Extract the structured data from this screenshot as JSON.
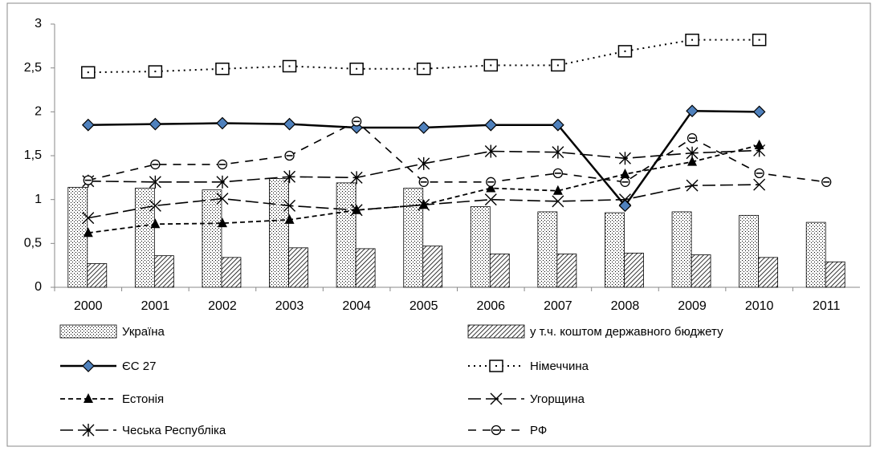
{
  "chart_data": {
    "type": "combo",
    "categories": [
      "2000",
      "2001",
      "2002",
      "2003",
      "2004",
      "2005",
      "2006",
      "2007",
      "2008",
      "2009",
      "2010",
      "2011"
    ],
    "ylim": [
      0,
      3
    ],
    "yticks": [
      0,
      {
        "value": 0.5,
        "label": "0,5"
      },
      1,
      {
        "value": 1.5,
        "label": "1,5"
      },
      2,
      {
        "value": 2.5,
        "label": "2,5"
      },
      3
    ],
    "grid": false,
    "legend": "bottom",
    "series": [
      {
        "name": "Україна",
        "kind": "bar",
        "pattern": "dots",
        "color": "#000000",
        "values": [
          1.14,
          1.13,
          1.11,
          1.24,
          1.19,
          1.13,
          0.92,
          0.86,
          0.85,
          0.86,
          0.82,
          0.74
        ]
      },
      {
        "name": "у т.ч. коштом державного бюджету",
        "kind": "bar",
        "pattern": "hatch",
        "color": "#000000",
        "values": [
          0.27,
          0.36,
          0.34,
          0.45,
          0.44,
          0.47,
          0.38,
          0.38,
          0.39,
          0.37,
          0.34,
          0.29
        ]
      },
      {
        "name": "ЄС 27",
        "kind": "line",
        "dash": "solid",
        "marker": "diamond",
        "color": "#000000",
        "marker_color": "#4f81bd",
        "values": [
          1.85,
          1.86,
          1.87,
          1.86,
          1.82,
          1.82,
          1.85,
          1.85,
          0.93,
          2.01,
          2.0,
          null
        ]
      },
      {
        "name": "Німеччина",
        "kind": "line",
        "dash": "dotted",
        "marker": "square",
        "color": "#000000",
        "values": [
          2.45,
          2.46,
          2.49,
          2.52,
          2.49,
          2.49,
          2.53,
          2.53,
          2.69,
          2.82,
          2.82,
          null
        ]
      },
      {
        "name": "Естонія",
        "kind": "line",
        "dash": "dashed",
        "marker": "triangle",
        "color": "#000000",
        "values": [
          0.62,
          0.72,
          0.73,
          0.77,
          0.88,
          0.94,
          1.13,
          1.1,
          1.29,
          1.43,
          1.62,
          null
        ]
      },
      {
        "name": "Угорщина",
        "kind": "line",
        "dash": "longdash",
        "marker": "x",
        "color": "#000000",
        "values": [
          0.79,
          0.93,
          1.01,
          0.93,
          0.88,
          0.94,
          1.0,
          0.98,
          1.0,
          1.16,
          1.17,
          null
        ]
      },
      {
        "name": "Чеська Республіка",
        "kind": "line",
        "dash": "longdash",
        "marker": "asterisk",
        "color": "#000000",
        "values": [
          1.21,
          1.2,
          1.2,
          1.26,
          1.25,
          1.41,
          1.55,
          1.54,
          1.47,
          1.53,
          1.56,
          null
        ]
      },
      {
        "name": "РФ",
        "kind": "line",
        "dash": "mediumdash",
        "marker": "circle",
        "color": "#000000",
        "values": [
          1.22,
          1.4,
          1.4,
          1.5,
          1.89,
          1.2,
          1.2,
          1.3,
          1.2,
          1.7,
          1.3,
          1.2
        ]
      }
    ]
  }
}
